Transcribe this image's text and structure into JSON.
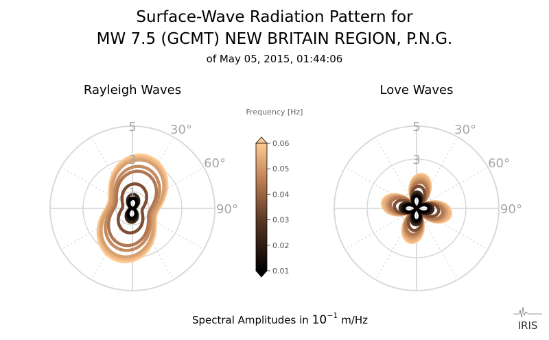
{
  "title": {
    "line1": "Surface-Wave Radiation Pattern for",
    "line2": "MW 7.5 (GCMT) NEW BRITAIN REGION, P.N.G.",
    "subtitle": "of May 05, 2015, 01:44:06"
  },
  "footer": {
    "xlabel_prefix": "Spectral Amplitudes in ",
    "xlabel_base": "10",
    "xlabel_exp": "−1",
    "xlabel_unit": " m/Hz",
    "logo": "IRIS"
  },
  "colors": {
    "grid": "#d9d9d9",
    "tick_text": "#a6a6a6",
    "cmap_low": "#000000",
    "cmap_mid": "#9c623f",
    "cmap_high": "#ffc992"
  },
  "chart_data": [
    {
      "type": "polar-line",
      "title": "Rayleigh Waves",
      "angle_ticks": [
        "30°",
        "60°",
        "90°"
      ],
      "radial_ticks": [
        {
          "value": 1,
          "label": "1"
        },
        {
          "value": 3,
          "label": "3"
        },
        {
          "value": 5,
          "label": "5"
        }
      ],
      "rmax": 5,
      "series": [
        {
          "frequency": 0.06,
          "a": 3.3,
          "b": 0.45,
          "phase": 15
        },
        {
          "frequency": 0.055,
          "a": 3.15,
          "b": 0.45,
          "phase": 15
        },
        {
          "frequency": 0.05,
          "a": 3.0,
          "b": 0.45,
          "phase": 15
        },
        {
          "frequency": 0.045,
          "a": 2.6,
          "b": 0.45,
          "phase": 15
        },
        {
          "frequency": 0.04,
          "a": 2.3,
          "b": 0.45,
          "phase": 15
        },
        {
          "frequency": 0.03,
          "a": 1.5,
          "b": 0.4,
          "phase": 10
        },
        {
          "frequency": 0.02,
          "a": 0.85,
          "b": 0.1,
          "phase": 5
        },
        {
          "frequency": 0.015,
          "a": 0.7,
          "b": 0.05,
          "phase": 5
        },
        {
          "frequency": 0.01,
          "a": 0.6,
          "b": 0.02,
          "phase": 5
        }
      ]
    },
    {
      "type": "polar-line",
      "title": "Love Waves",
      "angle_ticks": [
        "30°",
        "60°",
        "90°"
      ],
      "radial_ticks": [
        {
          "value": 1,
          "label": ""
        },
        {
          "value": 3,
          "label": "3"
        },
        {
          "value": 5,
          "label": "5"
        }
      ],
      "rmax": 5,
      "series": [
        {
          "frequency": 0.06,
          "a": 2.1,
          "phase": 55
        },
        {
          "frequency": 0.055,
          "a": 2.0,
          "phase": 55
        },
        {
          "frequency": 0.05,
          "a": 1.85,
          "phase": 55
        },
        {
          "frequency": 0.045,
          "a": 1.72,
          "phase": 55
        },
        {
          "frequency": 0.04,
          "a": 1.6,
          "phase": 55
        },
        {
          "frequency": 0.03,
          "a": 1.35,
          "phase": 52
        },
        {
          "frequency": 0.02,
          "a": 1.0,
          "phase": 48
        },
        {
          "frequency": 0.015,
          "a": 0.85,
          "phase": 46
        },
        {
          "frequency": 0.01,
          "a": 0.75,
          "phase": 45
        }
      ]
    },
    {
      "type": "colorbar",
      "label": "Frequency [Hz]",
      "ticks": [
        "0.01",
        "0.02",
        "0.03",
        "0.04",
        "0.05",
        "0.06"
      ],
      "range": [
        0.01,
        0.06
      ],
      "extend": "both"
    }
  ]
}
